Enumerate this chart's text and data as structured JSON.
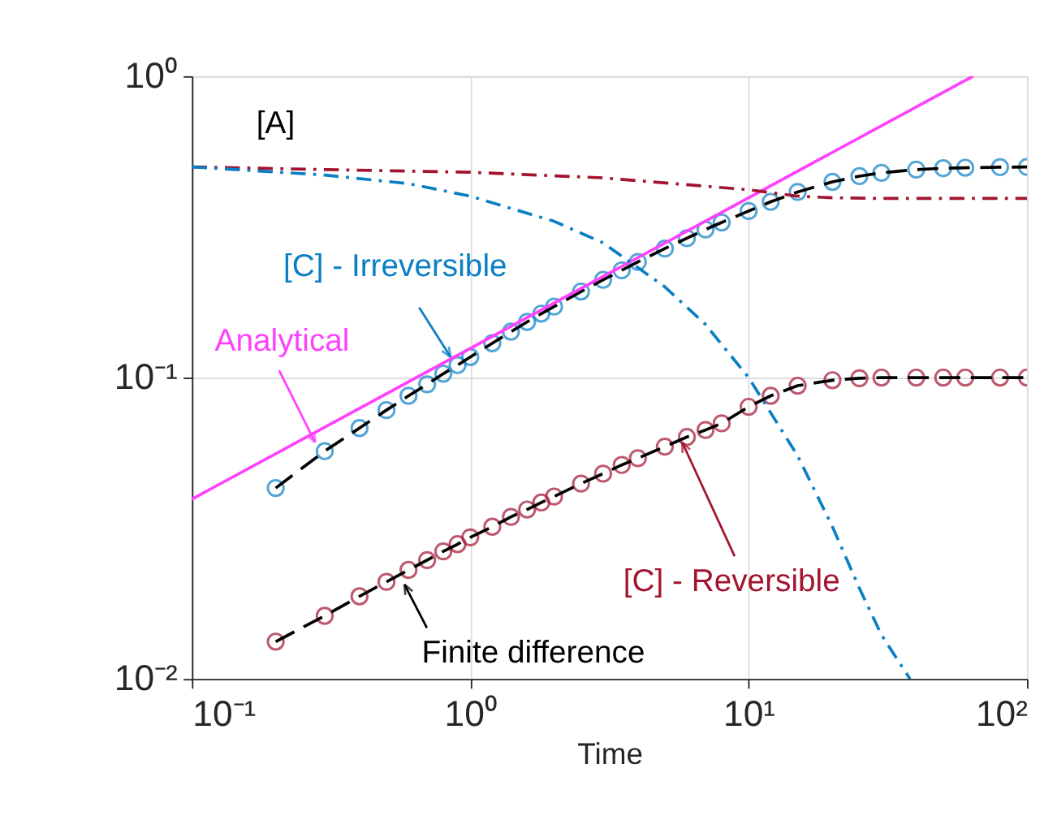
{
  "chart_data": {
    "type": "line",
    "xlabel": "Time",
    "log": "xy",
    "grid": true,
    "xlim": [
      0.1,
      100
    ],
    "ylim": [
      0.01,
      1
    ],
    "xticks": [
      {
        "value": 0.1,
        "label": "10⁻¹"
      },
      {
        "value": 1,
        "label": "10⁰"
      },
      {
        "value": 10,
        "label": "10¹"
      },
      {
        "value": 100,
        "label": "10²"
      }
    ],
    "yticks": [
      {
        "value": 0.01,
        "label": "10⁻²"
      },
      {
        "value": 0.1,
        "label": "10⁻¹"
      },
      {
        "value": 1,
        "label": "10⁰"
      }
    ],
    "x": [
      0.2,
      0.3,
      0.4,
      0.5,
      0.6,
      0.7,
      0.8,
      0.9,
      1,
      1.2,
      1.4,
      1.6,
      1.8,
      2,
      2.5,
      3,
      3.5,
      4,
      5,
      6,
      7,
      8,
      10,
      12,
      15,
      20,
      25,
      30,
      40,
      50,
      60,
      80,
      100
    ],
    "series": [
      {
        "type": "scatter",
        "marker": "circle",
        "color": "#0b7fc4",
        "values": [
          0.043,
          0.057,
          0.068,
          0.078,
          0.087,
          0.095,
          0.103,
          0.11,
          0.117,
          0.13,
          0.142,
          0.153,
          0.163,
          0.172,
          0.193,
          0.211,
          0.227,
          0.242,
          0.268,
          0.29,
          0.31,
          0.327,
          0.357,
          0.383,
          0.413,
          0.446,
          0.466,
          0.478,
          0.49,
          0.495,
          0.497,
          0.499,
          0.5
        ]
      },
      {
        "type": "scatter",
        "marker": "circle",
        "color": "#a2142f",
        "values": [
          0.0133,
          0.0162,
          0.0188,
          0.021,
          0.023,
          0.0248,
          0.0265,
          0.028,
          0.0295,
          0.032,
          0.0345,
          0.0365,
          0.0385,
          0.0403,
          0.0445,
          0.048,
          0.0513,
          0.054,
          0.059,
          0.0635,
          0.067,
          0.0705,
          0.08,
          0.087,
          0.094,
          0.098,
          0.0995,
          0.1,
          0.1,
          0.1,
          0.1,
          0.1,
          0.1
        ]
      },
      {
        "line_style": "dashed",
        "color": "#000000",
        "values": [
          0.043,
          0.057,
          0.068,
          0.078,
          0.087,
          0.095,
          0.103,
          0.11,
          0.117,
          0.13,
          0.142,
          0.153,
          0.163,
          0.172,
          0.193,
          0.211,
          0.227,
          0.242,
          0.268,
          0.29,
          0.31,
          0.327,
          0.357,
          0.383,
          0.413,
          0.446,
          0.466,
          0.478,
          0.49,
          0.495,
          0.497,
          0.499,
          0.5
        ]
      },
      {
        "line_style": "dashed",
        "color": "#000000",
        "values": [
          0.0133,
          0.0162,
          0.0188,
          0.021,
          0.023,
          0.0248,
          0.0265,
          0.028,
          0.0295,
          0.032,
          0.0345,
          0.0365,
          0.0385,
          0.0403,
          0.0445,
          0.048,
          0.0513,
          0.054,
          0.059,
          0.0635,
          0.067,
          0.0705,
          0.08,
          0.087,
          0.094,
          0.098,
          0.0995,
          0.1,
          0.1,
          0.1,
          0.1,
          0.1,
          0.1
        ]
      },
      {
        "line_style": "solid",
        "color": "#ff40ff",
        "x": [
          0.1,
          1,
          10,
          64
        ],
        "values": [
          0.0395,
          0.125,
          0.395,
          1
        ]
      },
      {
        "line_style": "dashdot",
        "color": "#a2142f",
        "x": [
          0.1,
          0.3,
          1,
          3,
          10,
          15,
          20,
          30,
          50,
          100
        ],
        "values": [
          0.5,
          0.49,
          0.48,
          0.46,
          0.42,
          0.4,
          0.395,
          0.393,
          0.393,
          0.393
        ]
      },
      {
        "line_style": "dashdot",
        "color": "#0b7fc4",
        "x": [
          0.1,
          0.3,
          0.6,
          1,
          2,
          3,
          5,
          7,
          10,
          15,
          20,
          25,
          30,
          38
        ],
        "values": [
          0.5,
          0.47,
          0.44,
          0.4,
          0.33,
          0.28,
          0.2,
          0.15,
          0.1,
          0.055,
          0.032,
          0.02,
          0.014,
          0.01
        ]
      }
    ],
    "annotations": [
      "[A]",
      {
        "text": "[C] - Irreversible",
        "x": 0.85,
        "y": 0.117
      },
      {
        "text": "Analytical",
        "x": 0.277,
        "y": 0.061
      },
      {
        "text": "[C] - Reversible",
        "x": 5.77,
        "y": 0.061
      },
      {
        "text": "Finite difference",
        "x": 0.58,
        "y": 0.0206
      }
    ]
  }
}
